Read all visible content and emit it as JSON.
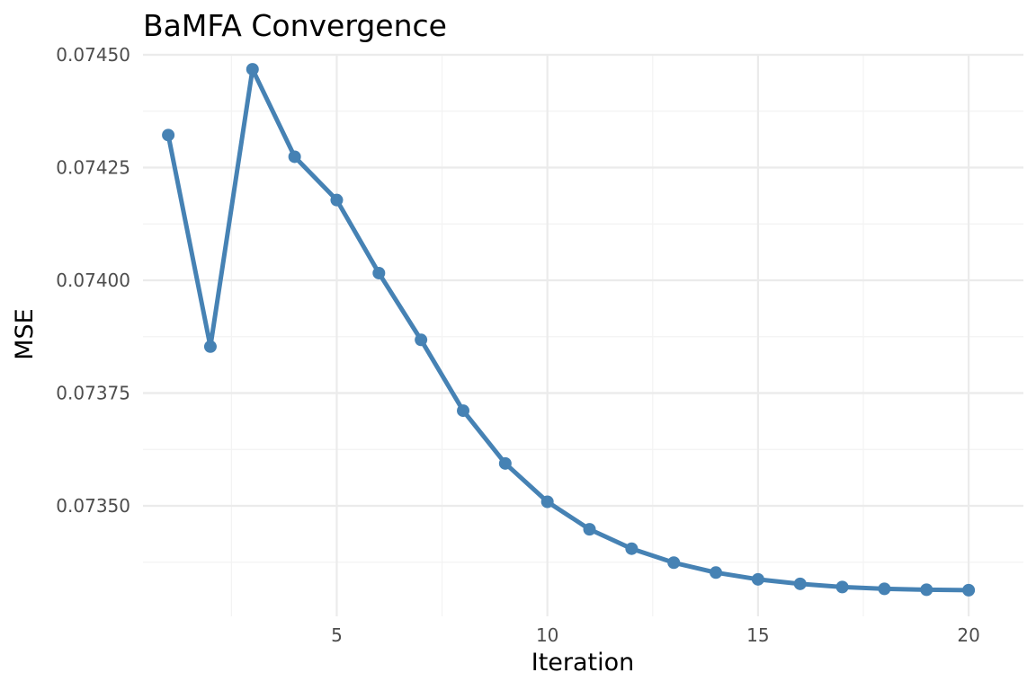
{
  "chart_data": {
    "type": "line",
    "title": "BaMFA Convergence",
    "xlabel": "Iteration",
    "ylabel": "MSE",
    "x": [
      1,
      2,
      3,
      4,
      5,
      6,
      7,
      8,
      9,
      10,
      11,
      12,
      13,
      14,
      15,
      16,
      17,
      18,
      19,
      20
    ],
    "series": [
      {
        "values": [
          0.074322,
          0.073853,
          0.074468,
          0.074274,
          0.074178,
          0.074016,
          0.073868,
          0.073711,
          0.073594,
          0.073509,
          0.073448,
          0.073405,
          0.073374,
          0.073352,
          0.073337,
          0.073327,
          0.07332,
          0.073316,
          0.073314,
          0.073313
        ],
        "color": "#4682b4"
      }
    ],
    "xlim": [
      0.4,
      21.3
    ],
    "ylim": [
      0.073255,
      0.074502
    ],
    "x_ticks": [
      5,
      10,
      15,
      20
    ],
    "x_tick_labels": [
      "5",
      "10",
      "15",
      "20"
    ],
    "x_minor_ticks": [
      2.5,
      7.5,
      12.5,
      17.5
    ],
    "y_ticks": [
      0.0735,
      0.07375,
      0.074,
      0.07425,
      0.0745
    ],
    "y_tick_labels": [
      "0.07350",
      "0.07375",
      "0.07400",
      "0.07425",
      "0.07450"
    ],
    "y_minor_ticks": [
      0.073375,
      0.073625,
      0.073875,
      0.074125,
      0.074375
    ],
    "grid": true,
    "legend": "none"
  }
}
